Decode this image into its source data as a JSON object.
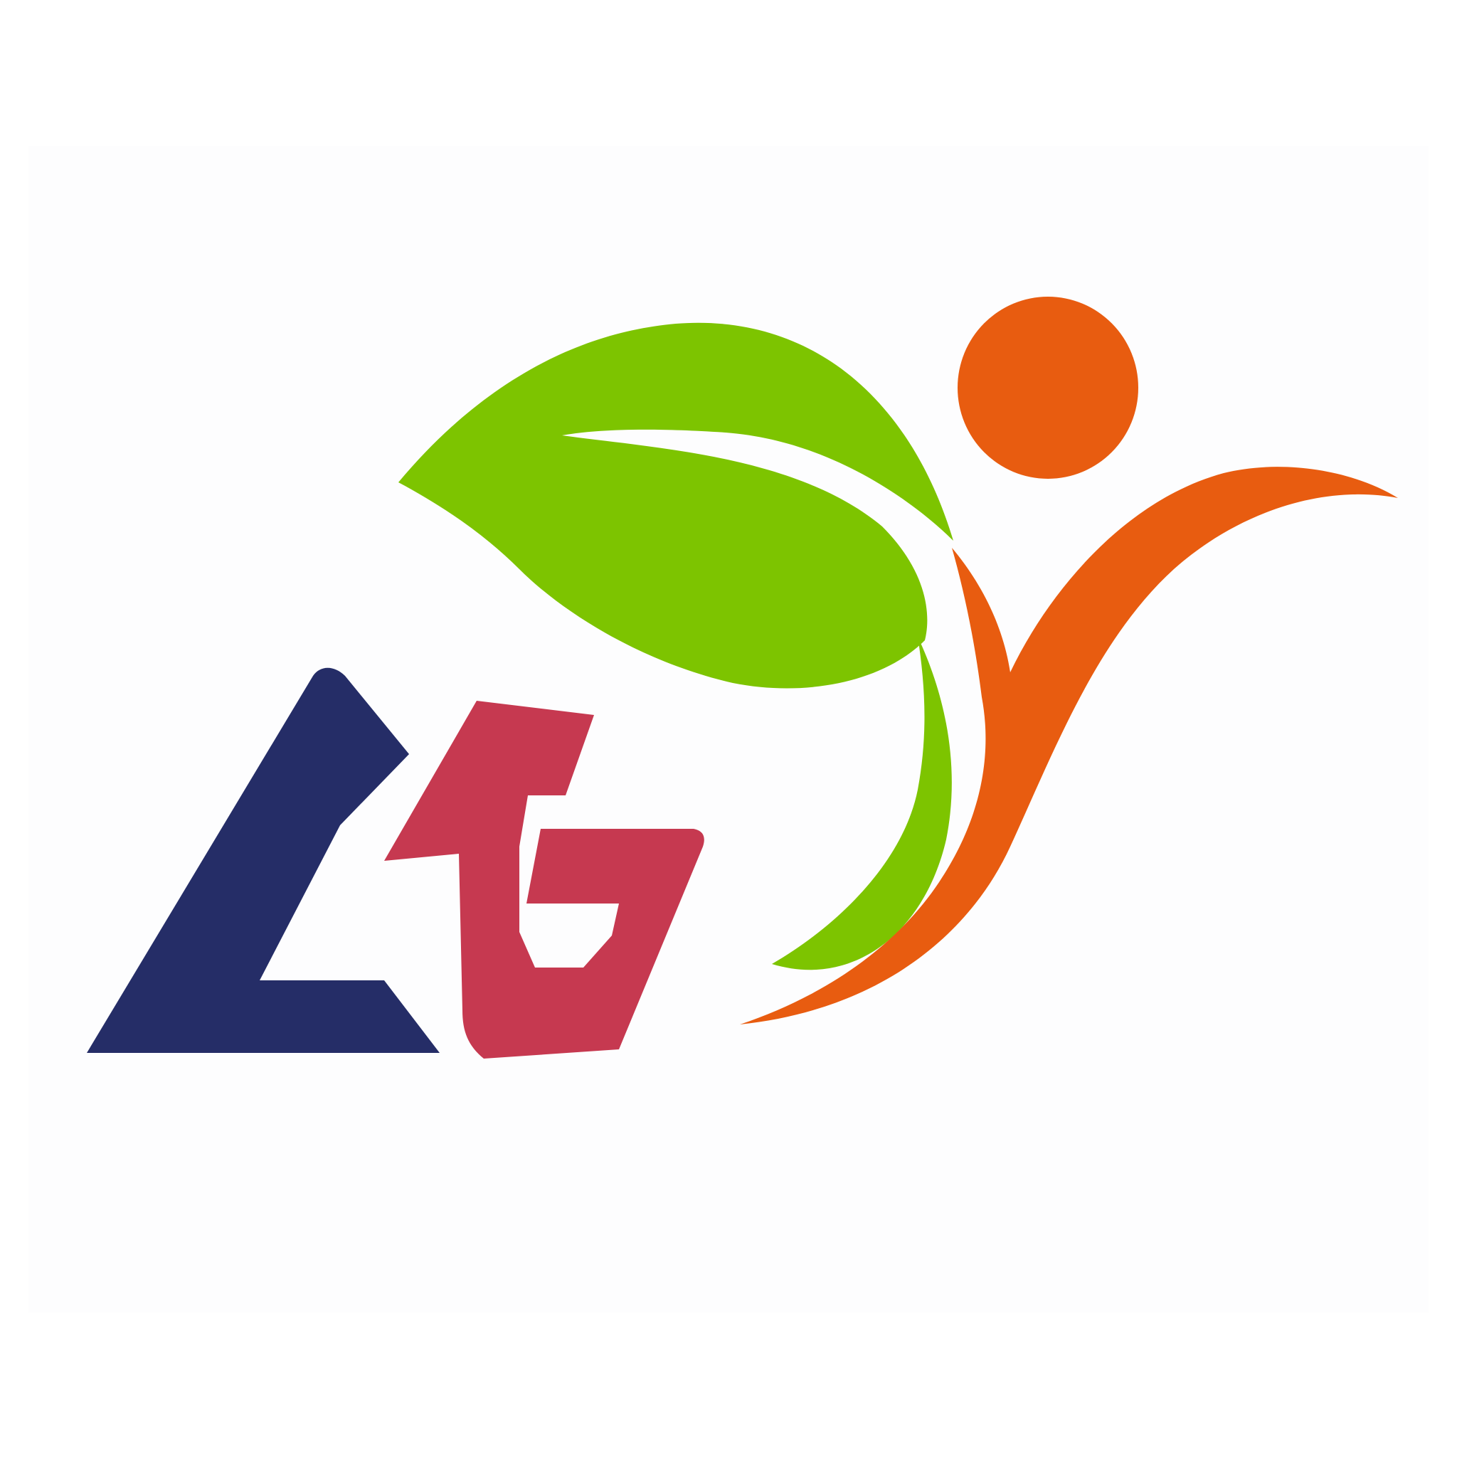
{
  "logo": {
    "lettering": "CG",
    "colors": {
      "background": "#ffffff",
      "frame": "#fdfdfe",
      "letter_c": "#252d67",
      "letter_g": "#c63950",
      "leaf": "#7dc400",
      "figure": "#e85c10"
    },
    "icons": [
      "letter-c-icon",
      "letter-g-icon",
      "leaf-icon",
      "person-figure-icon"
    ]
  }
}
